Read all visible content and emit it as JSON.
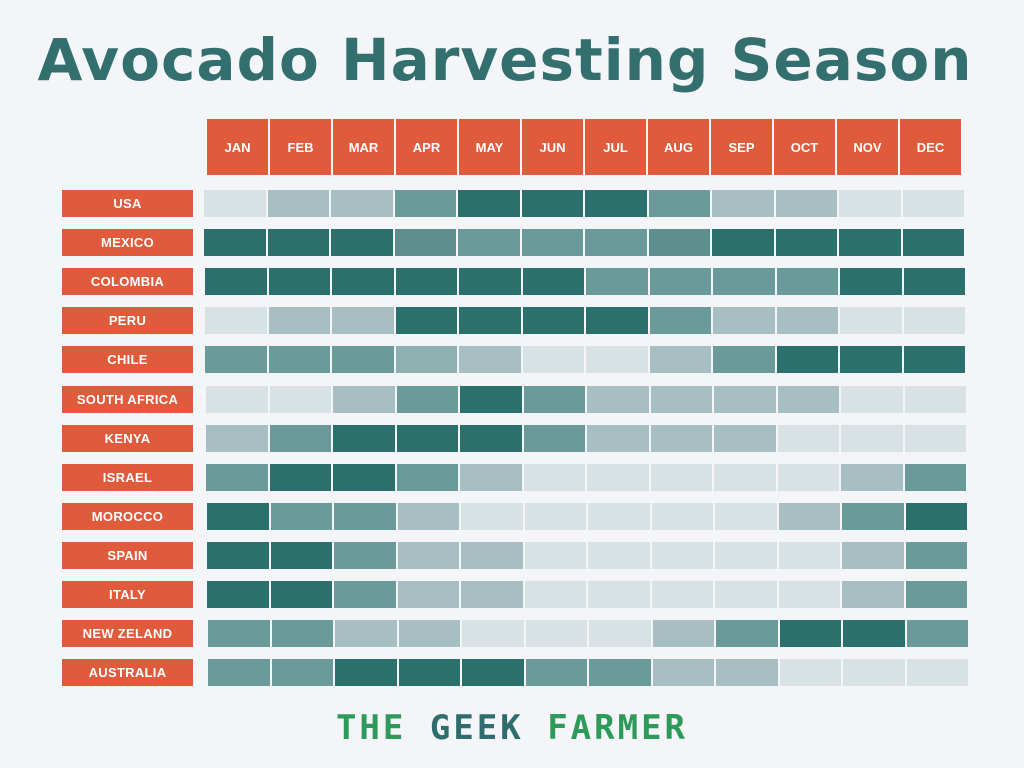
{
  "chart_data": {
    "type": "heatmap",
    "title": "Avocado Harvesting Season",
    "columns": [
      "JAN",
      "FEB",
      "MAR",
      "APR",
      "MAY",
      "JUN",
      "JUL",
      "AUG",
      "SEP",
      "OCT",
      "NOV",
      "DEC"
    ],
    "rows": [
      {
        "name": "USA",
        "levels": [
          0,
          1,
          1,
          2,
          3,
          3,
          3,
          2,
          1,
          1,
          0,
          0
        ]
      },
      {
        "name": "MEXICO",
        "levels": [
          3,
          3,
          3,
          2.5,
          2,
          2,
          2,
          2.5,
          3,
          3,
          3,
          3
        ]
      },
      {
        "name": "COLOMBIA",
        "levels": [
          3,
          3,
          3,
          3,
          3,
          3,
          2,
          2,
          2,
          2,
          3,
          3
        ]
      },
      {
        "name": "PERU",
        "levels": [
          0,
          1,
          1,
          3,
          3,
          3,
          3,
          2,
          1,
          1,
          0,
          0
        ]
      },
      {
        "name": "CHILE",
        "levels": [
          2,
          2,
          2,
          1.5,
          1,
          0,
          0,
          1,
          2,
          3,
          3,
          3
        ]
      },
      {
        "name": "SOUTH AFRICA",
        "levels": [
          0,
          0,
          1,
          2,
          3,
          2,
          1,
          1,
          1,
          1,
          0,
          0
        ]
      },
      {
        "name": "KENYA",
        "levels": [
          1,
          2,
          3,
          3,
          3,
          2,
          1,
          1,
          1,
          0,
          0,
          0
        ]
      },
      {
        "name": "ISRAEL",
        "levels": [
          2,
          3,
          3,
          2,
          1,
          0,
          0,
          0,
          0,
          0,
          1,
          2
        ]
      },
      {
        "name": "MOROCCO",
        "levels": [
          3,
          2,
          2,
          1,
          0,
          0,
          0,
          0,
          0,
          1,
          2,
          3
        ]
      },
      {
        "name": "SPAIN",
        "levels": [
          3,
          3,
          2,
          1,
          1,
          0,
          0,
          0,
          0,
          0,
          1,
          2
        ]
      },
      {
        "name": "ITALY",
        "levels": [
          3,
          3,
          2,
          1,
          1,
          0,
          0,
          0,
          0,
          0,
          1,
          2
        ]
      },
      {
        "name": "NEW ZELAND",
        "levels": [
          2,
          2,
          1,
          1,
          0,
          0,
          0,
          1,
          2,
          3,
          3,
          2
        ]
      },
      {
        "name": "AUSTRALIA",
        "levels": [
          2,
          2,
          3,
          3,
          3,
          2,
          2,
          1,
          1,
          0,
          0,
          0
        ]
      }
    ],
    "level_scale": "0 = lightest (off-season) to 3 = darkest (peak season)",
    "colors": {
      "level_0": "#d8e1e4",
      "level_1": "#a7bfc2",
      "level_1_5": "#8fb0b1",
      "level_2": "#6a9a9a",
      "level_2_5": "#5e8f8f",
      "level_3": "#2c706e",
      "header_bg": "#e05a3c",
      "title": "#346f6f"
    }
  },
  "footer": {
    "parts": [
      {
        "text": "THE ",
        "color": "#2e9a5a"
      },
      {
        "text": "GEEK ",
        "color": "#2f6c6e"
      },
      {
        "text": "FARMER",
        "color": "#2e9a5a"
      }
    ]
  }
}
